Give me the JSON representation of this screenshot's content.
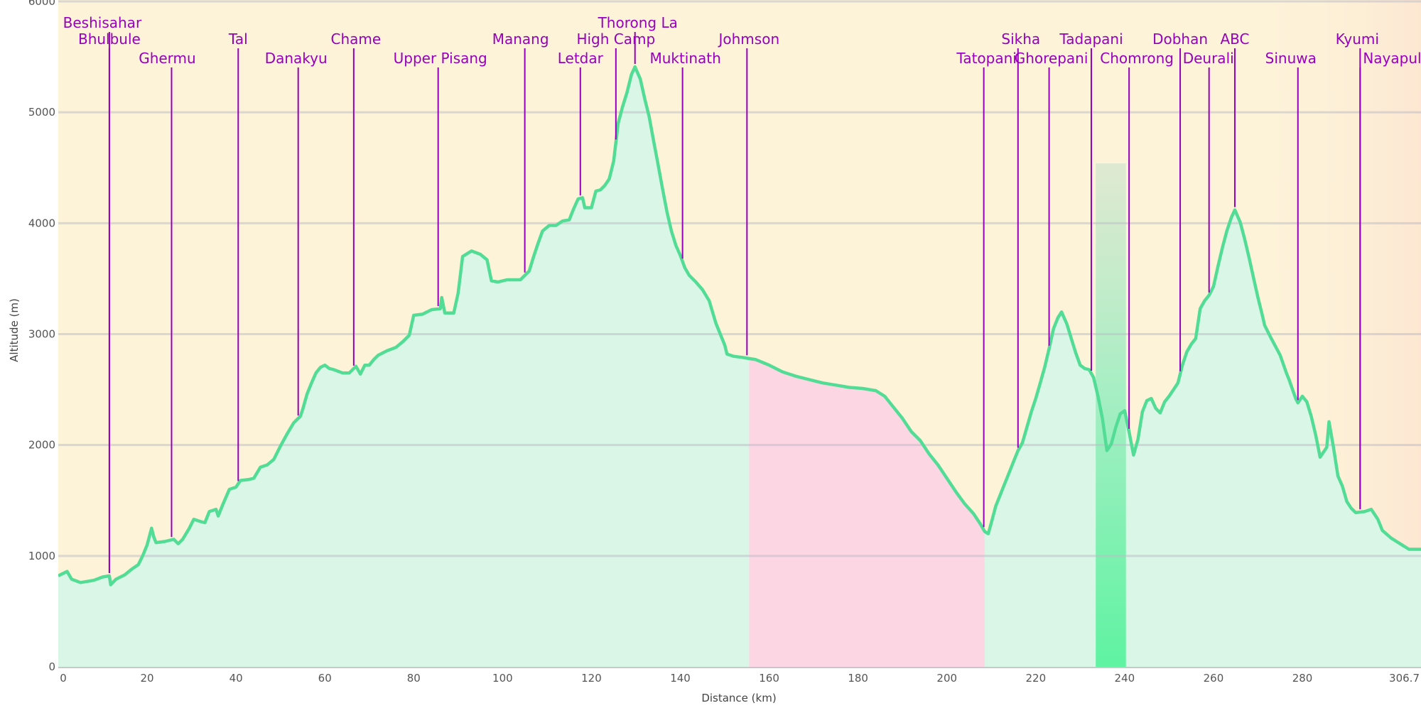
{
  "chart_data": {
    "type": "area",
    "xlabel": "Distance (km)",
    "ylabel": "Altitude (m)",
    "xlim": [
      0,
      306.7
    ],
    "ylim": [
      0,
      6000
    ],
    "x_ticks": [
      0,
      20,
      40,
      60,
      80,
      100,
      120,
      140,
      160,
      180,
      200,
      220,
      240,
      260,
      280,
      306.7
    ],
    "x_tick_labels": [
      "0",
      "20",
      "40",
      "60",
      "80",
      "100",
      "120",
      "140",
      "160",
      "180",
      "200",
      "220",
      "240",
      "260",
      "280",
      "306.7"
    ],
    "y_ticks": [
      0,
      1000,
      2000,
      3000,
      4000,
      5000,
      6000
    ],
    "y_tick_labels": [
      "0",
      "1000",
      "2000",
      "3000",
      "4000",
      "5000",
      "6000"
    ],
    "grid": true,
    "colors": {
      "background_band": "#fdf3d9",
      "area_fill": "#d9f6e6",
      "line": "#52dc95",
      "highlight_pink": "#fdd6e4",
      "highlight_green": "#68f0a6",
      "marker": "#9900bb"
    },
    "highlights": [
      {
        "start": 155.5,
        "end": 208.5,
        "color": "#fdd6e4"
      },
      {
        "start": 233.5,
        "end": 240.3,
        "color": "#68f0a6"
      }
    ],
    "profile": [
      [
        0,
        820
      ],
      [
        2,
        860
      ],
      [
        3,
        790
      ],
      [
        5,
        760
      ],
      [
        8,
        780
      ],
      [
        10,
        810
      ],
      [
        11.5,
        820
      ],
      [
        11.8,
        740
      ],
      [
        13,
        790
      ],
      [
        15,
        830
      ],
      [
        16.5,
        880
      ],
      [
        18,
        920
      ],
      [
        19,
        1000
      ],
      [
        20,
        1100
      ],
      [
        21,
        1250
      ],
      [
        21.5,
        1170
      ],
      [
        22,
        1120
      ],
      [
        24,
        1130
      ],
      [
        26,
        1150
      ],
      [
        27,
        1110
      ],
      [
        28,
        1150
      ],
      [
        29.5,
        1250
      ],
      [
        30.5,
        1330
      ],
      [
        32,
        1310
      ],
      [
        33,
        1300
      ],
      [
        34,
        1400
      ],
      [
        35.5,
        1420
      ],
      [
        36,
        1360
      ],
      [
        37,
        1460
      ],
      [
        38.5,
        1600
      ],
      [
        40,
        1620
      ],
      [
        41,
        1680
      ],
      [
        43,
        1690
      ],
      [
        44,
        1700
      ],
      [
        45.5,
        1800
      ],
      [
        47,
        1820
      ],
      [
        48.5,
        1870
      ],
      [
        50,
        1990
      ],
      [
        51.5,
        2100
      ],
      [
        53,
        2200
      ],
      [
        54.5,
        2260
      ],
      [
        55,
        2320
      ],
      [
        56,
        2460
      ],
      [
        57,
        2560
      ],
      [
        58,
        2650
      ],
      [
        59,
        2700
      ],
      [
        60,
        2720
      ],
      [
        61,
        2690
      ],
      [
        62,
        2680
      ],
      [
        64,
        2650
      ],
      [
        65.5,
        2650
      ],
      [
        67,
        2710
      ],
      [
        68,
        2640
      ],
      [
        69,
        2720
      ],
      [
        70,
        2720
      ],
      [
        71,
        2770
      ],
      [
        72,
        2810
      ],
      [
        74,
        2850
      ],
      [
        76,
        2880
      ],
      [
        77.5,
        2930
      ],
      [
        79,
        2990
      ],
      [
        80,
        3170
      ],
      [
        82,
        3180
      ],
      [
        84,
        3220
      ],
      [
        86,
        3230
      ],
      [
        86.3,
        3330
      ],
      [
        87,
        3190
      ],
      [
        89,
        3190
      ],
      [
        90,
        3370
      ],
      [
        91,
        3700
      ],
      [
        93,
        3750
      ],
      [
        95,
        3720
      ],
      [
        96.5,
        3670
      ],
      [
        97.5,
        3480
      ],
      [
        99,
        3470
      ],
      [
        101,
        3490
      ],
      [
        104,
        3490
      ],
      [
        106,
        3570
      ],
      [
        107,
        3700
      ],
      [
        108,
        3820
      ],
      [
        109,
        3930
      ],
      [
        110.5,
        3980
      ],
      [
        112,
        3980
      ],
      [
        113.5,
        4020
      ],
      [
        115,
        4030
      ],
      [
        116,
        4130
      ],
      [
        117,
        4220
      ],
      [
        118,
        4230
      ],
      [
        118.5,
        4140
      ],
      [
        120,
        4140
      ],
      [
        121,
        4290
      ],
      [
        122,
        4300
      ],
      [
        123,
        4340
      ],
      [
        124,
        4400
      ],
      [
        125,
        4560
      ],
      [
        126,
        4900
      ],
      [
        127,
        5050
      ],
      [
        128,
        5180
      ],
      [
        129,
        5340
      ],
      [
        129.8,
        5410
      ],
      [
        131,
        5300
      ],
      [
        132,
        5120
      ],
      [
        133,
        4960
      ],
      [
        134,
        4740
      ],
      [
        135,
        4530
      ],
      [
        136,
        4310
      ],
      [
        137,
        4100
      ],
      [
        138,
        3930
      ],
      [
        139,
        3800
      ],
      [
        140,
        3710
      ],
      [
        141,
        3600
      ],
      [
        142,
        3530
      ],
      [
        143.5,
        3470
      ],
      [
        145,
        3400
      ],
      [
        146.5,
        3300
      ],
      [
        148,
        3100
      ],
      [
        149,
        3000
      ],
      [
        150,
        2900
      ],
      [
        150.5,
        2820
      ],
      [
        152,
        2800
      ],
      [
        154,
        2790
      ],
      [
        155.5,
        2780
      ],
      [
        157,
        2770
      ],
      [
        160,
        2720
      ],
      [
        163,
        2660
      ],
      [
        166,
        2620
      ],
      [
        169,
        2590
      ],
      [
        172,
        2560
      ],
      [
        175,
        2540
      ],
      [
        178,
        2520
      ],
      [
        181,
        2510
      ],
      [
        184,
        2490
      ],
      [
        186,
        2440
      ],
      [
        188,
        2340
      ],
      [
        190,
        2240
      ],
      [
        192,
        2120
      ],
      [
        194,
        2040
      ],
      [
        196,
        1920
      ],
      [
        198,
        1820
      ],
      [
        200,
        1700
      ],
      [
        202,
        1580
      ],
      [
        204,
        1470
      ],
      [
        206,
        1380
      ],
      [
        207.5,
        1290
      ],
      [
        208.5,
        1220
      ],
      [
        209.3,
        1200
      ],
      [
        210,
        1300
      ],
      [
        211,
        1450
      ],
      [
        212,
        1550
      ],
      [
        213,
        1650
      ],
      [
        214,
        1750
      ],
      [
        215,
        1850
      ],
      [
        216,
        1950
      ],
      [
        217,
        2020
      ],
      [
        218,
        2160
      ],
      [
        219,
        2300
      ],
      [
        220,
        2420
      ],
      [
        221,
        2560
      ],
      [
        222,
        2700
      ],
      [
        223,
        2870
      ],
      [
        224,
        3050
      ],
      [
        225,
        3150
      ],
      [
        225.8,
        3200
      ],
      [
        227,
        3090
      ],
      [
        228,
        2960
      ],
      [
        229,
        2830
      ],
      [
        230,
        2720
      ],
      [
        231,
        2690
      ],
      [
        232,
        2680
      ],
      [
        233,
        2610
      ],
      [
        234,
        2440
      ],
      [
        235,
        2240
      ],
      [
        236,
        1950
      ],
      [
        237,
        2010
      ],
      [
        238,
        2160
      ],
      [
        239,
        2280
      ],
      [
        240,
        2310
      ],
      [
        241,
        2120
      ],
      [
        242,
        1910
      ],
      [
        243,
        2050
      ],
      [
        244,
        2300
      ],
      [
        245,
        2400
      ],
      [
        246,
        2420
      ],
      [
        247,
        2330
      ],
      [
        248,
        2290
      ],
      [
        249,
        2390
      ],
      [
        250,
        2440
      ],
      [
        251,
        2500
      ],
      [
        252,
        2560
      ],
      [
        253,
        2720
      ],
      [
        254,
        2840
      ],
      [
        255,
        2910
      ],
      [
        256,
        2960
      ],
      [
        257,
        3230
      ],
      [
        258,
        3300
      ],
      [
        259,
        3350
      ],
      [
        260,
        3430
      ],
      [
        261,
        3610
      ],
      [
        262,
        3780
      ],
      [
        263,
        3930
      ],
      [
        264,
        4050
      ],
      [
        264.8,
        4120
      ],
      [
        266,
        4010
      ],
      [
        267,
        3860
      ],
      [
        268,
        3690
      ],
      [
        269,
        3510
      ],
      [
        270,
        3330
      ],
      [
        271,
        3170
      ],
      [
        271.5,
        3080
      ],
      [
        273,
        2960
      ],
      [
        275,
        2810
      ],
      [
        276.5,
        2640
      ],
      [
        277,
        2590
      ],
      [
        278.5,
        2420
      ],
      [
        279,
        2380
      ],
      [
        280,
        2440
      ],
      [
        281,
        2390
      ],
      [
        282,
        2260
      ],
      [
        283,
        2090
      ],
      [
        284,
        1890
      ],
      [
        285.5,
        1980
      ],
      [
        286,
        2210
      ],
      [
        287,
        1980
      ],
      [
        288,
        1720
      ],
      [
        289,
        1630
      ],
      [
        290,
        1490
      ],
      [
        291,
        1430
      ],
      [
        292,
        1390
      ],
      [
        294,
        1400
      ],
      [
        295.5,
        1420
      ],
      [
        297,
        1330
      ],
      [
        298,
        1230
      ],
      [
        300,
        1160
      ],
      [
        302,
        1110
      ],
      [
        304,
        1060
      ],
      [
        306.7,
        1060
      ]
    ],
    "places": [
      {
        "name": "Beshisahar",
        "x": 11.5,
        "label_row": 1,
        "anchor": "middle",
        "dx": -10
      },
      {
        "name": "Bhulbule",
        "x": 11.5,
        "label_row": 2,
        "anchor": "middle",
        "dx": 0
      },
      {
        "name": "Ghermu",
        "x": 25.5,
        "label_row": 3,
        "anchor": "middle",
        "dx": -6
      },
      {
        "name": "Tal",
        "x": 40.5,
        "label_row": 2,
        "anchor": "middle",
        "dx": 0
      },
      {
        "name": "Danakyu",
        "x": 54,
        "label_row": 3,
        "anchor": "middle",
        "dx": -3
      },
      {
        "name": "Chame",
        "x": 66.5,
        "label_row": 2,
        "anchor": "middle",
        "dx": 3
      },
      {
        "name": "Upper Pisang",
        "x": 85.5,
        "label_row": 3,
        "anchor": "middle",
        "dx": 3
      },
      {
        "name": "Manang",
        "x": 105,
        "label_row": 2,
        "anchor": "middle",
        "dx": -6
      },
      {
        "name": "Letdar",
        "x": 117.5,
        "label_row": 3,
        "anchor": "middle",
        "dx": 0
      },
      {
        "name": "High Camp",
        "x": 125.5,
        "label_row": 2,
        "anchor": "middle",
        "dx": 0
      },
      {
        "name": "Thorong La",
        "x": 129.8,
        "label_row": 1,
        "anchor": "middle",
        "dx": 4
      },
      {
        "name": "Muktinath",
        "x": 140.5,
        "label_row": 3,
        "anchor": "middle",
        "dx": 4
      },
      {
        "name": "Johmson",
        "x": 155,
        "label_row": 2,
        "anchor": "middle",
        "dx": 3
      },
      {
        "name": "Tatopani",
        "x": 208.3,
        "label_row": 3,
        "anchor": "middle",
        "dx": 4
      },
      {
        "name": "Sikha",
        "x": 216,
        "label_row": 2,
        "anchor": "middle",
        "dx": 4
      },
      {
        "name": "Ghorepani",
        "x": 223,
        "label_row": 3,
        "anchor": "middle",
        "dx": 3
      },
      {
        "name": "Tadapani",
        "x": 232.5,
        "label_row": 2,
        "anchor": "middle",
        "dx": 0
      },
      {
        "name": "Chomrong",
        "x": 241,
        "label_row": 3,
        "anchor": "middle",
        "dx": 11
      },
      {
        "name": "Dobhan",
        "x": 252.5,
        "label_row": 2,
        "anchor": "middle",
        "dx": 0
      },
      {
        "name": "Deurali",
        "x": 259,
        "label_row": 3,
        "anchor": "middle",
        "dx": -1
      },
      {
        "name": "ABC",
        "x": 264.8,
        "label_row": 2,
        "anchor": "middle",
        "dx": 0
      },
      {
        "name": "Sinuwa",
        "x": 279,
        "label_row": 3,
        "anchor": "middle",
        "dx": -10
      },
      {
        "name": "Kyumi",
        "x": 293,
        "label_row": 2,
        "anchor": "middle",
        "dx": -4
      },
      {
        "name": "Nayapul",
        "x": 293,
        "label_row": 3,
        "anchor": "start",
        "dx": 4
      }
    ]
  }
}
